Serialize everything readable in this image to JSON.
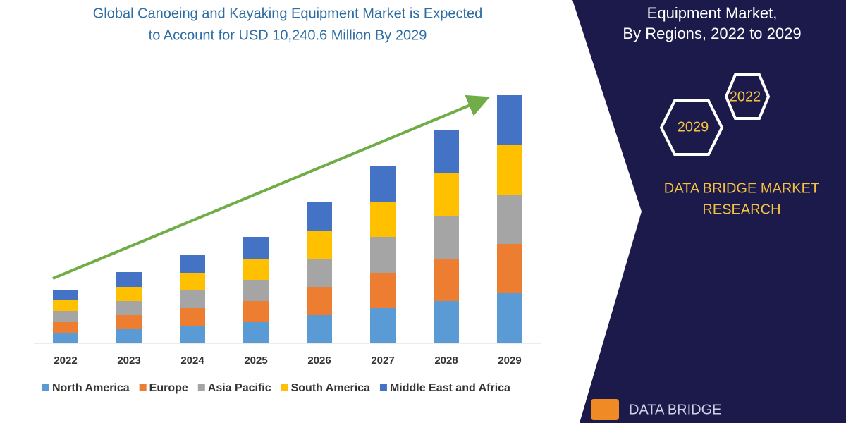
{
  "chart_data": {
    "type": "stacked-bar",
    "title": [
      "Global Canoeing and Kayaking Equipment Market is Expected",
      "to Account for USD 10,240.6 Million By 2029"
    ],
    "side_title": [
      "Equipment Market,",
      "By Regions, 2022 to 2029"
    ],
    "badges": [
      "2022",
      "2029"
    ],
    "brand": [
      "DATA BRIDGE MARKET",
      "RESEARCH"
    ],
    "logo": "DATA BRIDGE",
    "categories": [
      "2022",
      "2023",
      "2024",
      "2025",
      "2026",
      "2027",
      "2028",
      "2029"
    ],
    "series": [
      {
        "name": "North America",
        "color": "#5b9bd5",
        "values": [
          15,
          20,
          25,
          30,
          40,
          50,
          60,
          71
        ]
      },
      {
        "name": "Europe",
        "color": "#ed7d31",
        "values": [
          15,
          20,
          25,
          30,
          40,
          50,
          60,
          70
        ]
      },
      {
        "name": "Asia Pacific",
        "color": "#a5a5a5",
        "values": [
          16,
          20,
          25,
          30,
          40,
          51,
          61,
          70
        ]
      },
      {
        "name": "South America",
        "color": "#ffc000",
        "values": [
          15,
          20,
          25,
          30,
          40,
          49,
          60,
          70
        ]
      },
      {
        "name": "Middle East and Africa",
        "color": "#4472c4",
        "values": [
          15,
          21,
          25,
          31,
          41,
          51,
          61,
          71
        ]
      }
    ],
    "ylim": [
      0,
      352
    ]
  }
}
